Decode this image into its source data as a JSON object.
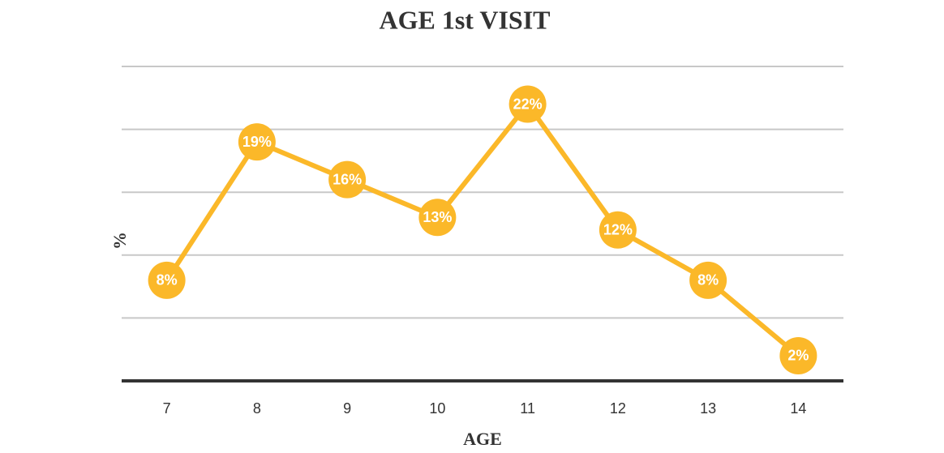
{
  "chart_data": {
    "type": "line",
    "title": "AGE 1st VISIT",
    "x_label": "AGE",
    "y_label": "%",
    "categories": [
      "7",
      "8",
      "9",
      "10",
      "11",
      "12",
      "13",
      "14"
    ],
    "values": [
      8,
      19,
      16,
      13,
      22,
      12,
      8,
      2
    ],
    "value_labels": [
      "8%",
      "19%",
      "16%",
      "13%",
      "22%",
      "12%",
      "8%",
      "2%"
    ],
    "color": "#fbb829",
    "ylim": [
      0,
      25
    ],
    "yticks": [
      0,
      5,
      10,
      15,
      20,
      25
    ],
    "grid": true
  }
}
